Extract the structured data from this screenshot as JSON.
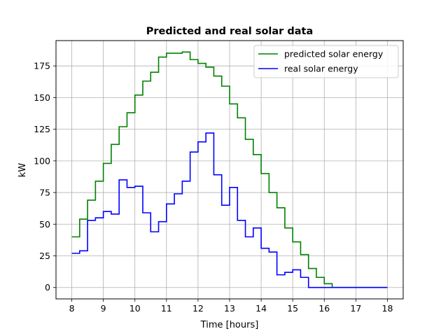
{
  "chart_data": {
    "type": "line",
    "step": "post",
    "title": "Predicted and real solar data",
    "xlabel": "Time [hours]",
    "ylabel": "kW",
    "xlim": [
      7.5,
      18.5
    ],
    "ylim": [
      -9,
      195
    ],
    "xticks": [
      8,
      9,
      10,
      11,
      12,
      13,
      14,
      15,
      16,
      17,
      18
    ],
    "yticks": [
      0,
      25,
      50,
      75,
      100,
      125,
      150,
      175
    ],
    "grid": true,
    "legend_position": "upper-right",
    "series": [
      {
        "name": "predicted solar energy",
        "color": "#008000",
        "x": [
          8,
          8.25,
          8.5,
          8.75,
          9,
          9.25,
          9.5,
          9.75,
          10,
          10.25,
          10.5,
          10.75,
          11,
          11.25,
          11.5,
          11.75,
          12,
          12.25,
          12.5,
          12.75,
          13,
          13.25,
          13.5,
          13.75,
          14,
          14.25,
          14.5,
          14.75,
          15,
          15.25,
          15.5,
          15.75,
          16,
          16.25,
          16.5,
          16.75,
          17,
          17.25,
          17.5,
          17.75,
          18
        ],
        "y": [
          40,
          54,
          69,
          84,
          98,
          113,
          127,
          138,
          152,
          163,
          170,
          182,
          185,
          185,
          186,
          180,
          177,
          174,
          167,
          159,
          145,
          134,
          117,
          105,
          90,
          75,
          63,
          47,
          36,
          26,
          15,
          8,
          3,
          0,
          0,
          0,
          0,
          0,
          0,
          0,
          0
        ]
      },
      {
        "name": "real solar energy",
        "color": "#0000ff",
        "x": [
          8,
          8.25,
          8.5,
          8.75,
          9,
          9.25,
          9.5,
          9.75,
          10,
          10.25,
          10.5,
          10.75,
          11,
          11.25,
          11.5,
          11.75,
          12,
          12.25,
          12.5,
          12.75,
          13,
          13.25,
          13.5,
          13.75,
          14,
          14.25,
          14.5,
          14.75,
          15,
          15.25,
          15.5,
          15.75,
          16,
          16.25,
          16.5,
          16.75,
          17,
          17.25,
          17.5,
          17.75,
          18
        ],
        "y": [
          27,
          29,
          53,
          55,
          60,
          58,
          85,
          79,
          80,
          59,
          44,
          52,
          66,
          74,
          84,
          107,
          115,
          122,
          89,
          65,
          79,
          53,
          40,
          47,
          31,
          28,
          10,
          12,
          14,
          8,
          0,
          0,
          0,
          0,
          0,
          0,
          0,
          0,
          0,
          0,
          0
        ]
      }
    ]
  }
}
